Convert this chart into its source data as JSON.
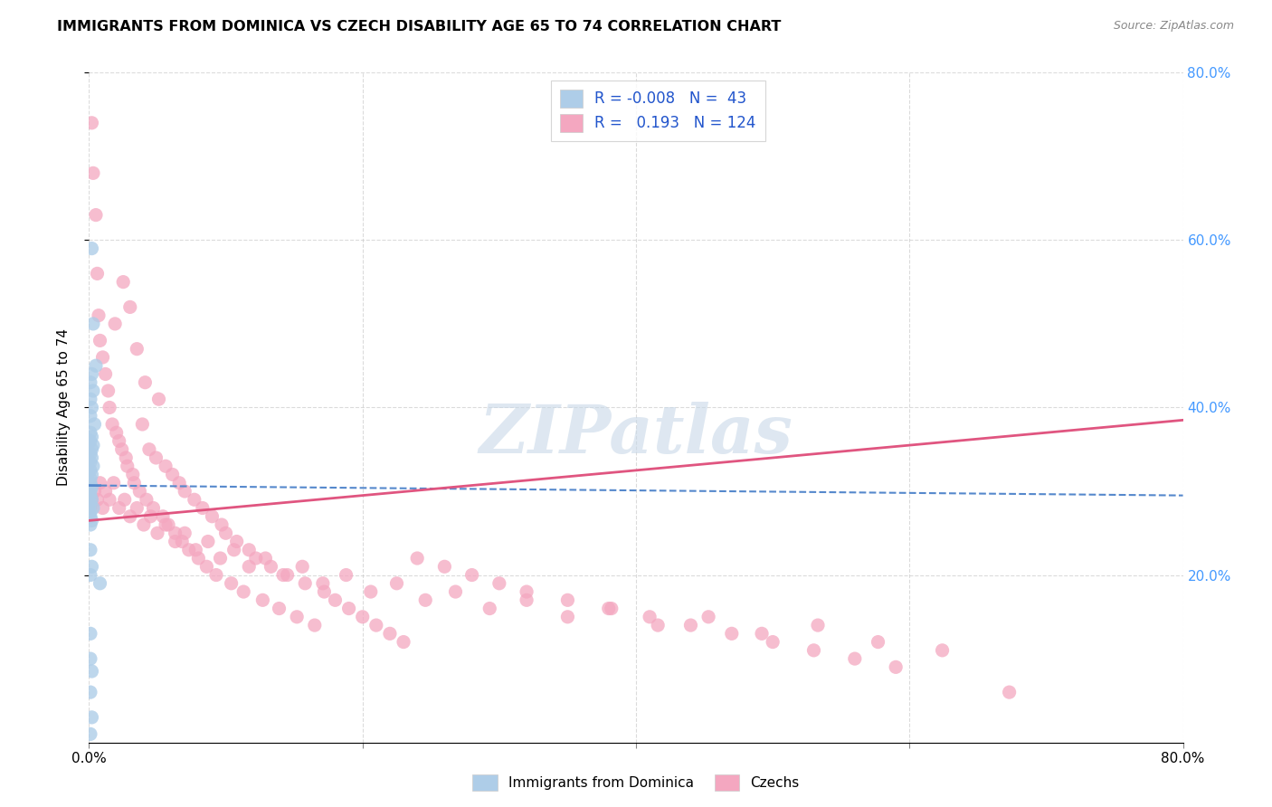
{
  "title": "IMMIGRANTS FROM DOMINICA VS CZECH DISABILITY AGE 65 TO 74 CORRELATION CHART",
  "source": "Source: ZipAtlas.com",
  "ylabel": "Disability Age 65 to 74",
  "legend": {
    "dominica_R": "-0.008",
    "dominica_N": "43",
    "czech_R": "0.193",
    "czech_N": "124"
  },
  "dominica_color": "#aecde8",
  "czech_color": "#f4a7c0",
  "dominica_line_color": "#5588cc",
  "czech_line_color": "#e05580",
  "dominica_scatter_x": [
    0.002,
    0.003,
    0.005,
    0.002,
    0.001,
    0.003,
    0.001,
    0.002,
    0.001,
    0.004,
    0.001,
    0.002,
    0.001,
    0.003,
    0.002,
    0.001,
    0.002,
    0.001,
    0.003,
    0.001,
    0.002,
    0.001,
    0.001,
    0.002,
    0.001,
    0.001,
    0.002,
    0.001,
    0.003,
    0.001,
    0.001,
    0.002,
    0.001,
    0.001,
    0.002,
    0.001,
    0.008,
    0.001,
    0.001,
    0.002,
    0.001,
    0.002,
    0.001
  ],
  "dominica_scatter_y": [
    0.59,
    0.5,
    0.45,
    0.44,
    0.43,
    0.42,
    0.41,
    0.4,
    0.39,
    0.38,
    0.37,
    0.365,
    0.36,
    0.355,
    0.35,
    0.345,
    0.34,
    0.335,
    0.33,
    0.325,
    0.32,
    0.315,
    0.31,
    0.305,
    0.3,
    0.295,
    0.29,
    0.285,
    0.28,
    0.275,
    0.27,
    0.265,
    0.26,
    0.23,
    0.21,
    0.2,
    0.19,
    0.13,
    0.1,
    0.085,
    0.06,
    0.03,
    0.01
  ],
  "czech_scatter_x": [
    0.002,
    0.003,
    0.005,
    0.006,
    0.007,
    0.008,
    0.01,
    0.012,
    0.014,
    0.015,
    0.017,
    0.019,
    0.02,
    0.022,
    0.024,
    0.025,
    0.027,
    0.028,
    0.03,
    0.032,
    0.033,
    0.035,
    0.037,
    0.039,
    0.041,
    0.042,
    0.044,
    0.047,
    0.049,
    0.051,
    0.054,
    0.056,
    0.058,
    0.061,
    0.063,
    0.066,
    0.068,
    0.07,
    0.073,
    0.077,
    0.08,
    0.083,
    0.086,
    0.09,
    0.093,
    0.097,
    0.1,
    0.104,
    0.108,
    0.113,
    0.117,
    0.122,
    0.127,
    0.133,
    0.139,
    0.145,
    0.152,
    0.158,
    0.165,
    0.172,
    0.18,
    0.19,
    0.2,
    0.21,
    0.22,
    0.23,
    0.24,
    0.26,
    0.28,
    0.3,
    0.32,
    0.35,
    0.38,
    0.41,
    0.44,
    0.47,
    0.5,
    0.53,
    0.56,
    0.59,
    0.001,
    0.002,
    0.004,
    0.006,
    0.008,
    0.01,
    0.012,
    0.015,
    0.018,
    0.022,
    0.026,
    0.03,
    0.035,
    0.04,
    0.045,
    0.05,
    0.056,
    0.063,
    0.07,
    0.078,
    0.087,
    0.096,
    0.106,
    0.117,
    0.129,
    0.142,
    0.156,
    0.171,
    0.188,
    0.206,
    0.225,
    0.246,
    0.268,
    0.293,
    0.32,
    0.35,
    0.382,
    0.416,
    0.453,
    0.492,
    0.533,
    0.577,
    0.624,
    0.673
  ],
  "czech_scatter_y": [
    0.74,
    0.68,
    0.63,
    0.56,
    0.51,
    0.48,
    0.46,
    0.44,
    0.42,
    0.4,
    0.38,
    0.5,
    0.37,
    0.36,
    0.35,
    0.55,
    0.34,
    0.33,
    0.52,
    0.32,
    0.31,
    0.47,
    0.3,
    0.38,
    0.43,
    0.29,
    0.35,
    0.28,
    0.34,
    0.41,
    0.27,
    0.33,
    0.26,
    0.32,
    0.25,
    0.31,
    0.24,
    0.3,
    0.23,
    0.29,
    0.22,
    0.28,
    0.21,
    0.27,
    0.2,
    0.26,
    0.25,
    0.19,
    0.24,
    0.18,
    0.23,
    0.22,
    0.17,
    0.21,
    0.16,
    0.2,
    0.15,
    0.19,
    0.14,
    0.18,
    0.17,
    0.16,
    0.15,
    0.14,
    0.13,
    0.12,
    0.22,
    0.21,
    0.2,
    0.19,
    0.18,
    0.17,
    0.16,
    0.15,
    0.14,
    0.13,
    0.12,
    0.11,
    0.1,
    0.09,
    0.28,
    0.29,
    0.3,
    0.29,
    0.31,
    0.28,
    0.3,
    0.29,
    0.31,
    0.28,
    0.29,
    0.27,
    0.28,
    0.26,
    0.27,
    0.25,
    0.26,
    0.24,
    0.25,
    0.23,
    0.24,
    0.22,
    0.23,
    0.21,
    0.22,
    0.2,
    0.21,
    0.19,
    0.2,
    0.18,
    0.19,
    0.17,
    0.18,
    0.16,
    0.17,
    0.15,
    0.16,
    0.14,
    0.15,
    0.13,
    0.14,
    0.12,
    0.11,
    0.06
  ],
  "xlim": [
    0.0,
    0.8
  ],
  "ylim": [
    0.0,
    0.8
  ],
  "dom_line_x": [
    0.0,
    0.8
  ],
  "dom_line_y": [
    0.307,
    0.295
  ],
  "czech_line_x": [
    0.0,
    0.8
  ],
  "czech_line_y": [
    0.265,
    0.385
  ],
  "watermark": "ZIPatlas",
  "background_color": "#ffffff",
  "grid_color": "#cccccc"
}
